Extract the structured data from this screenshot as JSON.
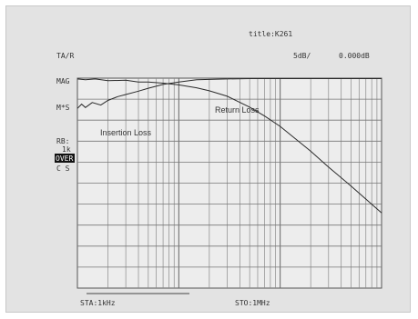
{
  "header": {
    "title": "title:K261",
    "mode": "TA/R",
    "scale": "5dB/",
    "reference": "0.000dB"
  },
  "side_labels": {
    "mag": "MAG",
    "ms": "M*S",
    "rb": "RB:",
    "rb_value": "1k",
    "over": "OVER",
    "cs": "C S"
  },
  "footer": {
    "start": "STA:1kHz",
    "stop": "STO:1MHz"
  },
  "chart_data": {
    "type": "line",
    "xscale": "log",
    "xlim": [
      1,
      1000
    ],
    "ylim": [
      -50,
      0
    ],
    "yscale_step": 5,
    "grid": true,
    "annotations": [
      "Return Loss",
      "Insertion Loss"
    ],
    "series": [
      {
        "name": "Insertion Loss",
        "x": [
          1,
          1.1,
          1.2,
          1.4,
          1.7,
          2,
          2.5,
          3,
          4,
          5,
          7,
          10,
          15,
          20,
          30,
          50,
          100,
          1000
        ],
        "y": [
          -7.2,
          -6.2,
          -7.0,
          -5.8,
          -6.4,
          -5.3,
          -4.4,
          -3.9,
          -3.1,
          -2.4,
          -1.5,
          -0.9,
          -0.4,
          -0.3,
          -0.2,
          -0.1,
          -0.1,
          -0.1
        ]
      },
      {
        "name": "Return Loss",
        "x": [
          1,
          1.2,
          1.5,
          2,
          3,
          4,
          5,
          7,
          10,
          15,
          20,
          30,
          50,
          70,
          100,
          200,
          300,
          500,
          1000
        ],
        "y": [
          -0.2,
          -0.4,
          -0.2,
          -0.6,
          -0.5,
          -0.9,
          -0.9,
          -1.2,
          -1.6,
          -2.3,
          -3.0,
          -4.3,
          -6.9,
          -9.0,
          -11.5,
          -17.4,
          -21.2,
          -25.7,
          -32.1
        ]
      }
    ]
  }
}
